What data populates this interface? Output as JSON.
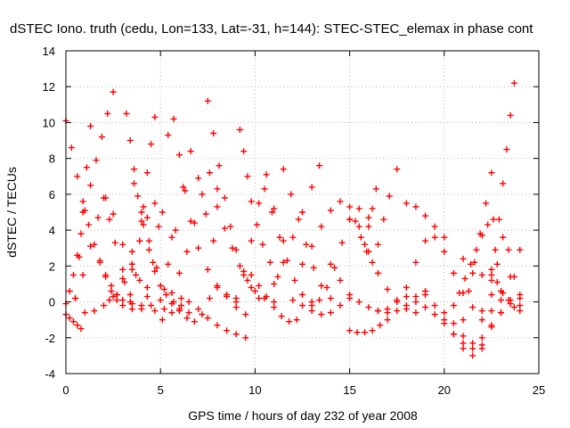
{
  "chart_data": {
    "type": "scatter",
    "title": "dSTEC Iono. truth (cedu, Lon=133, Lat=-31, h=144): STEC-STEC_elemax in phase cont",
    "xlabel": "GPS time / hours of day 232 of year 2008",
    "ylabel": "dSTEC  / TECUs",
    "xlim": [
      0,
      25
    ],
    "ylim": [
      -4,
      14
    ],
    "xticks": [
      0,
      5,
      10,
      15,
      20,
      25
    ],
    "yticks": [
      -4,
      -2,
      0,
      2,
      4,
      6,
      8,
      10,
      12,
      14
    ],
    "grid": true,
    "marker": "+",
    "color": "#ff0000",
    "series": [
      {
        "x": [
          0.0,
          0.2,
          0.4,
          0.6,
          0.8,
          1.0,
          1.3,
          1.6,
          1.9,
          2.2,
          2.5
        ],
        "y": [
          -0.1,
          0.6,
          1.5,
          2.6,
          3.8,
          5.1,
          6.5,
          7.9,
          9.2,
          10.5,
          11.7
        ]
      },
      {
        "x": [
          0.0,
          0.3,
          0.6,
          0.9,
          1.2,
          1.5,
          1.8,
          2.1,
          2.4,
          2.7,
          3.0,
          3.4
        ],
        "y": [
          10.1,
          8.6,
          7.0,
          5.6,
          4.3,
          3.2,
          2.3,
          1.5,
          0.9,
          0.4,
          0.1,
          0.0
        ]
      },
      {
        "x": [
          0.0,
          0.2,
          0.4,
          0.6,
          0.8
        ],
        "y": [
          -0.7,
          -0.9,
          -1.1,
          -1.3,
          -1.5
        ]
      },
      {
        "x": [
          0.5,
          0.7,
          0.9,
          1.1,
          1.3
        ],
        "y": [
          0.2,
          2.5,
          5.0,
          7.5,
          9.8
        ]
      },
      {
        "x": [
          0.5,
          0.9,
          1.3,
          1.7,
          2.1,
          2.5,
          3.0,
          3.5
        ],
        "y": [
          0.2,
          1.5,
          3.1,
          4.7,
          5.8,
          4.9,
          3.2,
          1.8
        ]
      },
      {
        "x": [
          1.0,
          1.5,
          2.0,
          2.5,
          3.0,
          3.5,
          4.0
        ],
        "y": [
          -0.6,
          -0.5,
          -0.2,
          0.3,
          1.3,
          2.8,
          4.5
        ]
      },
      {
        "x": [
          1.8,
          2.1,
          2.4,
          2.7,
          3.0,
          3.5,
          4.0,
          4.5,
          5.0
        ],
        "y": [
          2.2,
          1.4,
          0.6,
          0.1,
          -0.2,
          -0.4,
          -0.4,
          -0.2,
          0.1
        ]
      },
      {
        "x": [
          2.0,
          2.3,
          2.6,
          3.0,
          3.4
        ],
        "y": [
          5.8,
          4.6,
          3.3,
          1.8,
          0.4
        ]
      },
      {
        "x": [
          3.2,
          3.4,
          3.6,
          3.8,
          4.1,
          4.4,
          4.7,
          5.0,
          5.3,
          5.7,
          6.1
        ],
        "y": [
          10.5,
          9.0,
          7.4,
          5.9,
          4.3,
          2.9,
          1.7,
          0.9,
          0.4,
          0.0,
          -0.2
        ]
      },
      {
        "x": [
          2.3,
          2.7,
          3.1,
          3.5,
          3.9,
          4.3,
          4.7,
          5.1,
          5.6
        ],
        "y": [
          0.1,
          0.4,
          1.1,
          2.1,
          3.4,
          4.7,
          5.5,
          5.0,
          3.6
        ]
      },
      {
        "x": [
          3.5,
          3.7,
          3.9,
          4.1,
          4.3,
          4.5,
          4.7
        ],
        "y": [
          -0.1,
          1.5,
          3.4,
          5.3,
          7.2,
          8.8,
          10.3
        ]
      },
      {
        "x": [
          3.5,
          3.9,
          4.3,
          4.7,
          5.1,
          5.6,
          6.1
        ],
        "y": [
          2.1,
          1.2,
          0.3,
          -0.5,
          -1.0,
          -0.6,
          0.2
        ]
      },
      {
        "x": [
          3.6,
          4.0,
          4.4,
          4.8,
          5.2,
          5.6,
          6.0,
          6.5
        ],
        "y": [
          6.6,
          5.0,
          3.4,
          1.9,
          0.7,
          -0.1,
          -0.5,
          -0.6
        ]
      },
      {
        "x": [
          4.0,
          4.3,
          4.6,
          4.9
        ],
        "y": [
          -0.2,
          0.8,
          2.2,
          4.2
        ]
      },
      {
        "x": [
          5.0,
          5.4,
          5.8,
          6.2,
          6.6,
          7.0,
          7.4,
          7.8
        ],
        "y": [
          0.9,
          2.1,
          4.0,
          6.4,
          8.4,
          6.9,
          4.9,
          3.4
        ]
      },
      {
        "x": [
          5.4,
          5.7,
          6.0,
          6.3,
          6.6,
          7.0,
          7.5,
          8.0,
          8.5,
          9.0
        ],
        "y": [
          9.3,
          10.2,
          8.2,
          6.2,
          4.5,
          3.0,
          1.8,
          0.9,
          0.3,
          0.0
        ]
      },
      {
        "x": [
          5.2,
          5.6,
          6.0,
          6.4,
          6.8,
          7.2,
          7.6,
          8.0
        ],
        "y": [
          -0.4,
          0.5,
          1.6,
          2.8,
          4.4,
          6.0,
          7.2,
          6.3
        ]
      },
      {
        "x": [
          6.0,
          6.4,
          6.8,
          7.2,
          7.6,
          8.0,
          8.5,
          9.0,
          9.5
        ],
        "y": [
          -0.4,
          -0.9,
          -1.1,
          -0.7,
          0.2,
          0.8,
          0.4,
          -0.3,
          -0.7
        ]
      },
      {
        "x": [
          7.5,
          7.8,
          8.1,
          8.4,
          8.7,
          9.0,
          9.4,
          9.8,
          10.2
        ],
        "y": [
          11.2,
          9.4,
          7.6,
          5.8,
          4.2,
          2.9,
          1.7,
          0.8,
          0.2
        ]
      },
      {
        "x": [
          6.5,
          7.0,
          7.5,
          8.0,
          8.5,
          9.0,
          9.5
        ],
        "y": [
          0.0,
          -0.4,
          -0.9,
          -1.3,
          -1.6,
          -1.8,
          -2.0
        ]
      },
      {
        "x": [
          8.0,
          8.4,
          8.8,
          9.2,
          9.6,
          10.0,
          10.5,
          11.0
        ],
        "y": [
          5.3,
          4.1,
          3.0,
          2.0,
          1.2,
          0.6,
          0.2,
          0.0
        ]
      },
      {
        "x": [
          9.2,
          9.4,
          9.6,
          9.8,
          10.1,
          10.4,
          10.8,
          11.2
        ],
        "y": [
          9.6,
          8.4,
          7.0,
          5.6,
          4.3,
          3.2,
          2.2,
          1.4
        ]
      },
      {
        "x": [
          9.0,
          9.4,
          9.8,
          10.2,
          10.6,
          11.0,
          11.5
        ],
        "y": [
          0.2,
          1.5,
          3.4,
          5.5,
          7.1,
          5.2,
          3.4
        ]
      },
      {
        "x": [
          9.8,
          10.2,
          10.6,
          11.0,
          11.4,
          11.8,
          12.2
        ],
        "y": [
          1.5,
          0.9,
          0.3,
          -0.3,
          -0.8,
          -1.1,
          -1.0
        ]
      },
      {
        "x": [
          10.5,
          10.9,
          11.3,
          11.7,
          12.1,
          12.5,
          13.0
        ],
        "y": [
          6.3,
          5.0,
          3.6,
          2.3,
          1.2,
          0.4,
          0.0
        ]
      },
      {
        "x": [
          11.0,
          11.5,
          12.0,
          12.5,
          13.0,
          13.4
        ],
        "y": [
          1.0,
          2.2,
          3.6,
          5.0,
          6.4,
          7.6
        ]
      },
      {
        "x": [
          11.5,
          11.9,
          12.3,
          12.7,
          13.1,
          13.5,
          14.0
        ],
        "y": [
          7.4,
          6.0,
          4.6,
          3.2,
          1.9,
          0.9,
          0.2
        ]
      },
      {
        "x": [
          12.0,
          12.5,
          13.0,
          13.5,
          14.0,
          14.5,
          15.0
        ],
        "y": [
          0.1,
          -0.2,
          -0.5,
          -0.7,
          -0.6,
          -0.2,
          0.2
        ]
      },
      {
        "x": [
          12.5,
          13.0,
          13.5,
          14.0,
          14.5,
          15.0
        ],
        "y": [
          2.1,
          3.1,
          4.2,
          5.1,
          5.6,
          4.6
        ]
      },
      {
        "x": [
          13.0,
          13.4,
          13.8,
          14.2,
          14.6,
          15.0,
          15.5,
          16.0
        ],
        "y": [
          -0.2,
          0.1,
          0.8,
          1.9,
          3.3,
          4.6,
          5.2,
          4.7
        ]
      },
      {
        "x": [
          14.0,
          14.5,
          15.0,
          15.5,
          16.0,
          16.5,
          17.0
        ],
        "y": [
          2.1,
          1.2,
          0.4,
          0.0,
          -0.3,
          -0.5,
          -0.4
        ]
      },
      {
        "x": [
          15.0,
          15.3,
          15.6,
          15.9,
          16.2,
          16.5,
          16.8,
          17.1,
          17.5
        ],
        "y": [
          5.3,
          4.5,
          3.6,
          2.8,
          2.2,
          3.2,
          4.6,
          5.9,
          7.4
        ]
      },
      {
        "x": [
          15.0,
          15.4,
          15.8,
          16.2,
          16.6,
          17.0
        ],
        "y": [
          -1.6,
          -1.7,
          -1.7,
          -1.6,
          -1.3,
          -1.0
        ]
      },
      {
        "x": [
          15.5,
          16.0,
          16.5,
          17.0,
          17.5,
          18.0,
          18.5
        ],
        "y": [
          4.2,
          2.8,
          1.6,
          0.7,
          0.1,
          -0.4,
          -0.6
        ]
      },
      {
        "x": [
          15.8,
          16.0,
          16.2,
          16.4
        ],
        "y": [
          3.2,
          4.2,
          5.2,
          6.3
        ]
      },
      {
        "x": [
          16.5,
          17.0,
          17.5,
          18.0,
          18.5,
          19.0
        ],
        "y": [
          -0.5,
          -0.6,
          -0.5,
          -0.2,
          0.3,
          0.6
        ]
      },
      {
        "x": [
          17.5,
          18.0,
          18.5,
          19.0,
          19.5,
          20.0,
          20.5,
          21.0,
          21.5,
          22.0
        ],
        "y": [
          0.0,
          0.8,
          2.2,
          3.4,
          3.6,
          2.8,
          1.6,
          0.5,
          -0.3,
          -0.5
        ]
      },
      {
        "x": [
          18.0,
          18.5,
          19.0,
          19.5,
          20.0
        ],
        "y": [
          5.5,
          5.3,
          4.8,
          4.2,
          3.6
        ]
      },
      {
        "x": [
          18.0,
          18.5,
          19.0,
          19.5,
          20.0,
          20.5,
          21.0,
          21.5,
          22.0
        ],
        "y": [
          0.3,
          0.0,
          -0.3,
          -0.7,
          -1.2,
          -1.8,
          -2.3,
          -2.6,
          -2.6
        ]
      },
      {
        "x": [
          19.0,
          19.5,
          20.0,
          20.5,
          21.0,
          21.5,
          22.0,
          22.5,
          23.0
        ],
        "y": [
          0.4,
          -0.2,
          -1.0,
          -1.8,
          -2.6,
          -3.0,
          -2.4,
          -1.4,
          -0.6
        ]
      },
      {
        "x": [
          20.5,
          20.8,
          21.1,
          21.4,
          21.7,
          22.0,
          22.3,
          22.6
        ],
        "y": [
          -0.2,
          0.5,
          1.3,
          2.1,
          2.9,
          3.7,
          4.3,
          4.6
        ]
      },
      {
        "x": [
          20.0,
          20.5,
          21.0,
          21.5,
          22.0,
          22.5,
          23.0,
          23.5,
          24.0
        ],
        "y": [
          -0.6,
          -1.2,
          -1.9,
          -2.3,
          -2.0,
          -1.3,
          -0.6,
          -0.1,
          0.2
        ]
      },
      {
        "x": [
          21.0,
          21.3,
          21.6,
          21.9,
          22.2,
          22.5
        ],
        "y": [
          -1.0,
          0.6,
          2.2,
          3.8,
          5.5,
          7.2
        ]
      },
      {
        "x": [
          21.0,
          21.5,
          22.0,
          22.5,
          23.0,
          23.5,
          24.0
        ],
        "y": [
          2.4,
          1.6,
          1.5,
          1.2,
          0.6,
          0.1,
          -0.2
        ]
      },
      {
        "x": [
          22.0,
          22.5,
          23.0,
          23.5,
          24.0
        ],
        "y": [
          -1.0,
          -0.5,
          0.1,
          1.4,
          2.9
        ]
      },
      {
        "x": [
          22.5,
          22.8,
          23.1,
          23.4,
          23.7,
          24.0
        ],
        "y": [
          0.4,
          2.1,
          3.6,
          2.9,
          1.4,
          0.4
        ]
      },
      {
        "x": [
          22.5,
          22.8,
          23.1,
          23.4,
          23.7,
          24.0
        ],
        "y": [
          1.8,
          1.1,
          0.5,
          0.1,
          -0.3,
          -0.5
        ]
      },
      {
        "x": [
          22.5,
          22.7,
          22.9,
          23.1,
          23.3,
          23.5,
          23.7
        ],
        "y": [
          1.5,
          2.9,
          4.6,
          6.6,
          8.5,
          10.4,
          12.2
        ]
      }
    ]
  }
}
